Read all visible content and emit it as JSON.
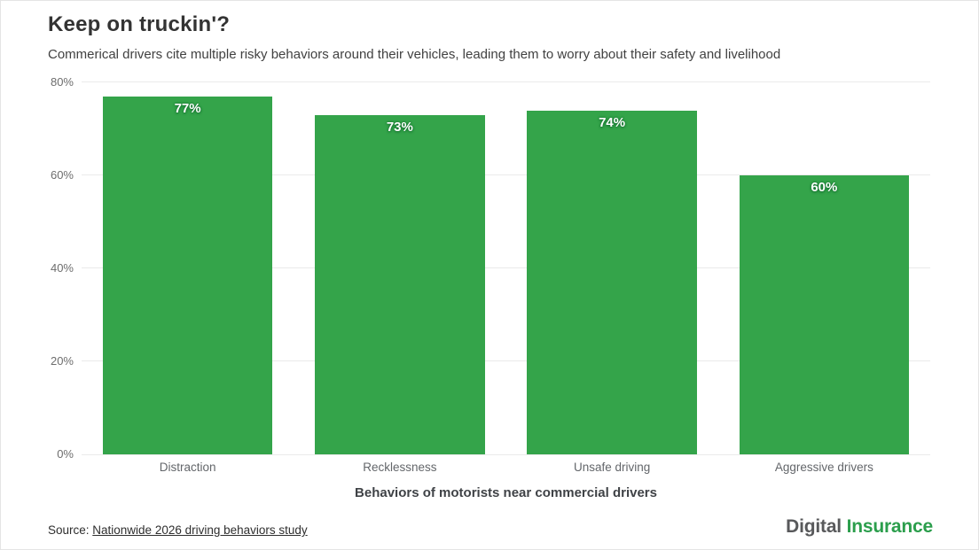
{
  "header": {
    "title": "Keep on truckin'?",
    "subtitle": "Commerical drivers cite multiple risky behaviors around their vehicles, leading them to worry about their safety and livelihood"
  },
  "chart_data": {
    "type": "bar",
    "categories": [
      "Distraction",
      "Recklessness",
      "Unsafe driving",
      "Aggressive drivers"
    ],
    "values": [
      77,
      73,
      74,
      60
    ],
    "value_labels": [
      "77%",
      "73%",
      "74%",
      "60%"
    ],
    "title": "Keep on truckin'?",
    "xlabel": "Behaviors of motorists near commercial drivers",
    "ylabel": "",
    "ylim": [
      0,
      80
    ],
    "yticks": [
      0,
      20,
      40,
      60,
      80
    ],
    "ytick_labels": [
      "0%",
      "20%",
      "40%",
      "60%",
      "80%"
    ],
    "grid": true,
    "legend": "none",
    "bar_color": "#34a44a"
  },
  "footer": {
    "source_prefix": "Source: ",
    "source_link": "Nationwide 2026 driving behaviors study",
    "logo_part1": "Digital",
    "logo_part2": " Insurance"
  },
  "colors": {
    "bar": "#34a44a",
    "value_label_text": "#ffffff",
    "gridline": "#eaeaea",
    "title_text": "#333333",
    "logo_gray": "#58595b",
    "logo_green": "#2b9e4c"
  }
}
